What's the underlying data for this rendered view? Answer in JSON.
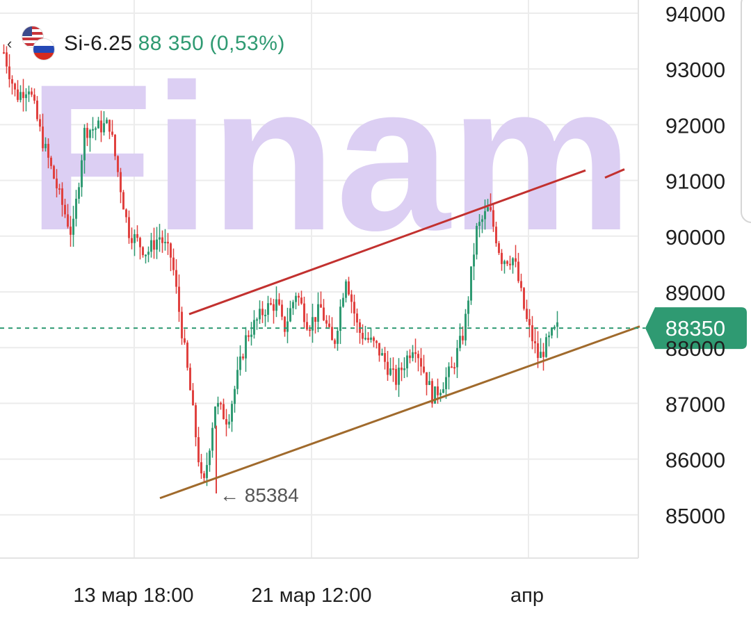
{
  "header": {
    "back_glyph": "‹",
    "ticker": "Si-6.25",
    "price": "88 350",
    "change": "(0,53%)",
    "flags": [
      "us-flag-icon",
      "ru-flag-icon"
    ]
  },
  "watermark": "Finam",
  "current_price_label": "88350",
  "min_annotation": "← 85384",
  "colors": {
    "up": "#2f9a72",
    "down": "#e0413f",
    "price_line": "#2f9a72",
    "upper_trendline": "#c2312f",
    "lower_trendline": "#a06a2c",
    "watermark": "#dccff3",
    "grid": "#ececec"
  },
  "chart_data": {
    "type": "candlestick",
    "y_ticks": [
      94000,
      93000,
      92000,
      91000,
      90000,
      89000,
      88000,
      87000,
      86000,
      85000
    ],
    "y_tick_labels": [
      "94000",
      "93000",
      "92000",
      "91000",
      "90000",
      "89000",
      "88000",
      "87000",
      "86000",
      "85000"
    ],
    "ylim": [
      84300,
      94300
    ],
    "x_tick_labels": [
      "13 мар 18:00",
      "21 мар 12:00",
      "апр"
    ],
    "current_price": 88350,
    "min_low": 85384,
    "path": [
      [
        0,
        93300
      ],
      [
        0.02,
        92500
      ],
      [
        0.04,
        92700
      ],
      [
        0.06,
        91800
      ],
      [
        0.09,
        90700
      ],
      [
        0.11,
        90000
      ],
      [
        0.13,
        91900
      ],
      [
        0.17,
        92000
      ],
      [
        0.2,
        90100
      ],
      [
        0.23,
        89700
      ],
      [
        0.25,
        90000
      ],
      [
        0.27,
        89600
      ],
      [
        0.3,
        87200
      ],
      [
        0.32,
        85400
      ],
      [
        0.34,
        87000
      ],
      [
        0.36,
        86700
      ],
      [
        0.39,
        88200
      ],
      [
        0.42,
        88700
      ],
      [
        0.44,
        88800
      ],
      [
        0.45,
        88300
      ],
      [
        0.47,
        89000
      ],
      [
        0.49,
        88400
      ],
      [
        0.51,
        88700
      ],
      [
        0.53,
        88000
      ],
      [
        0.55,
        89300
      ],
      [
        0.57,
        88300
      ],
      [
        0.6,
        88000
      ],
      [
        0.63,
        87400
      ],
      [
        0.66,
        88100
      ],
      [
        0.69,
        87100
      ],
      [
        0.72,
        87600
      ],
      [
        0.74,
        88300
      ],
      [
        0.76,
        90100
      ],
      [
        0.78,
        90500
      ],
      [
        0.8,
        89600
      ],
      [
        0.82,
        89600
      ],
      [
        0.84,
        88500
      ],
      [
        0.86,
        87800
      ],
      [
        0.88,
        88200
      ],
      [
        0.89,
        88350
      ]
    ]
  }
}
